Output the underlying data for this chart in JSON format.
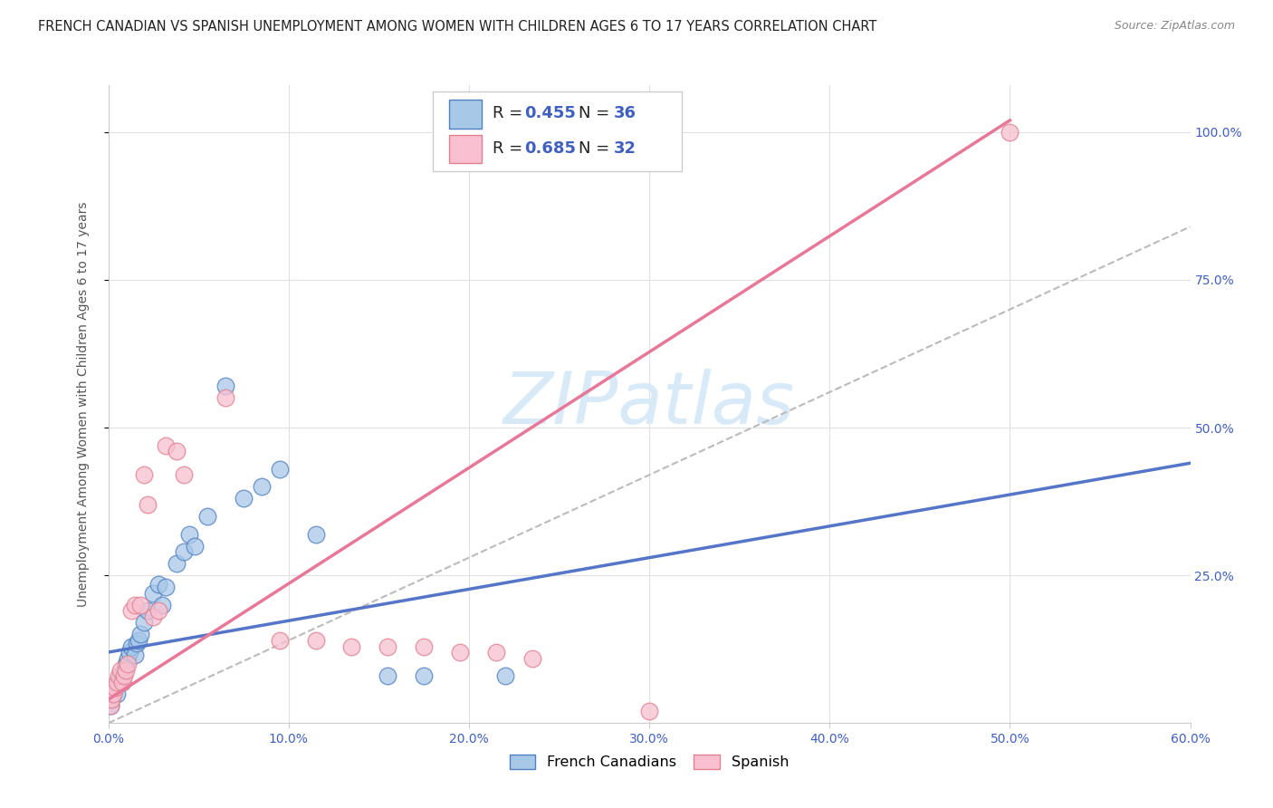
{
  "title": "FRENCH CANADIAN VS SPANISH UNEMPLOYMENT AMONG WOMEN WITH CHILDREN AGES 6 TO 17 YEARS CORRELATION CHART",
  "source": "Source: ZipAtlas.com",
  "ylabel": "Unemployment Among Women with Children Ages 6 to 17 years",
  "xlim": [
    0.0,
    0.6
  ],
  "ylim": [
    0.0,
    1.08
  ],
  "xtick_labels": [
    "0.0%",
    "10.0%",
    "20.0%",
    "30.0%",
    "40.0%",
    "50.0%",
    "60.0%"
  ],
  "xtick_vals": [
    0.0,
    0.1,
    0.2,
    0.3,
    0.4,
    0.5,
    0.6
  ],
  "ytick_labels": [
    "25.0%",
    "50.0%",
    "75.0%",
    "100.0%"
  ],
  "ytick_vals": [
    0.25,
    0.5,
    0.75,
    1.0
  ],
  "blue_fill": "#A8C8E8",
  "blue_edge": "#5080C0",
  "pink_fill": "#F8C0D0",
  "pink_edge": "#E08090",
  "blue_line_color": "#5575C8",
  "pink_line_color": "#E87898",
  "diag_line_color": "#BBBBBB",
  "legend_r_blue": "0.455",
  "legend_n_blue": "36",
  "legend_r_pink": "0.685",
  "legend_n_pink": "32",
  "text_blue_color": "#4060C0",
  "text_black": "#222222",
  "watermark_color": "#D8EAF8",
  "blue_scatter_x": [
    0.001,
    0.002,
    0.003,
    0.004,
    0.005,
    0.006,
    0.007,
    0.008,
    0.009,
    0.01,
    0.011,
    0.012,
    0.013,
    0.015,
    0.016,
    0.017,
    0.018,
    0.02,
    0.022,
    0.025,
    0.028,
    0.03,
    0.032,
    0.038,
    0.042,
    0.045,
    0.048,
    0.055,
    0.065,
    0.075,
    0.085,
    0.095,
    0.115,
    0.155,
    0.175,
    0.22
  ],
  "blue_scatter_y": [
    0.03,
    0.04,
    0.05,
    0.06,
    0.05,
    0.07,
    0.08,
    0.07,
    0.09,
    0.1,
    0.11,
    0.12,
    0.13,
    0.115,
    0.135,
    0.14,
    0.15,
    0.17,
    0.19,
    0.22,
    0.235,
    0.2,
    0.23,
    0.27,
    0.29,
    0.32,
    0.3,
    0.35,
    0.57,
    0.38,
    0.4,
    0.43,
    0.32,
    0.08,
    0.08,
    0.08
  ],
  "pink_scatter_x": [
    0.001,
    0.002,
    0.003,
    0.004,
    0.005,
    0.006,
    0.007,
    0.008,
    0.009,
    0.01,
    0.011,
    0.013,
    0.015,
    0.018,
    0.02,
    0.022,
    0.025,
    0.028,
    0.032,
    0.038,
    0.042,
    0.065,
    0.095,
    0.115,
    0.135,
    0.155,
    0.175,
    0.195,
    0.215,
    0.235,
    0.3,
    0.5
  ],
  "pink_scatter_y": [
    0.03,
    0.04,
    0.05,
    0.06,
    0.07,
    0.08,
    0.09,
    0.07,
    0.08,
    0.09,
    0.1,
    0.19,
    0.2,
    0.2,
    0.42,
    0.37,
    0.18,
    0.19,
    0.47,
    0.46,
    0.42,
    0.55,
    0.14,
    0.14,
    0.13,
    0.13,
    0.13,
    0.12,
    0.12,
    0.11,
    0.02,
    1.0
  ],
  "blue_line_x": [
    0.0,
    0.6
  ],
  "blue_line_y": [
    0.12,
    0.44
  ],
  "pink_line_x": [
    0.0,
    0.5
  ],
  "pink_line_y": [
    0.04,
    1.02
  ],
  "diag_line_x": [
    0.0,
    0.6
  ],
  "diag_line_y": [
    0.0,
    0.84
  ],
  "background_color": "#FFFFFF",
  "grid_color": "#E0E0E0",
  "title_color": "#222222",
  "axis_label_color": "#555555",
  "tick_color": "#4060C0",
  "title_fontsize": 10.5,
  "source_fontsize": 9,
  "ylabel_fontsize": 10,
  "tick_fontsize": 10,
  "legend_fontsize": 13,
  "scatter_size": 180
}
